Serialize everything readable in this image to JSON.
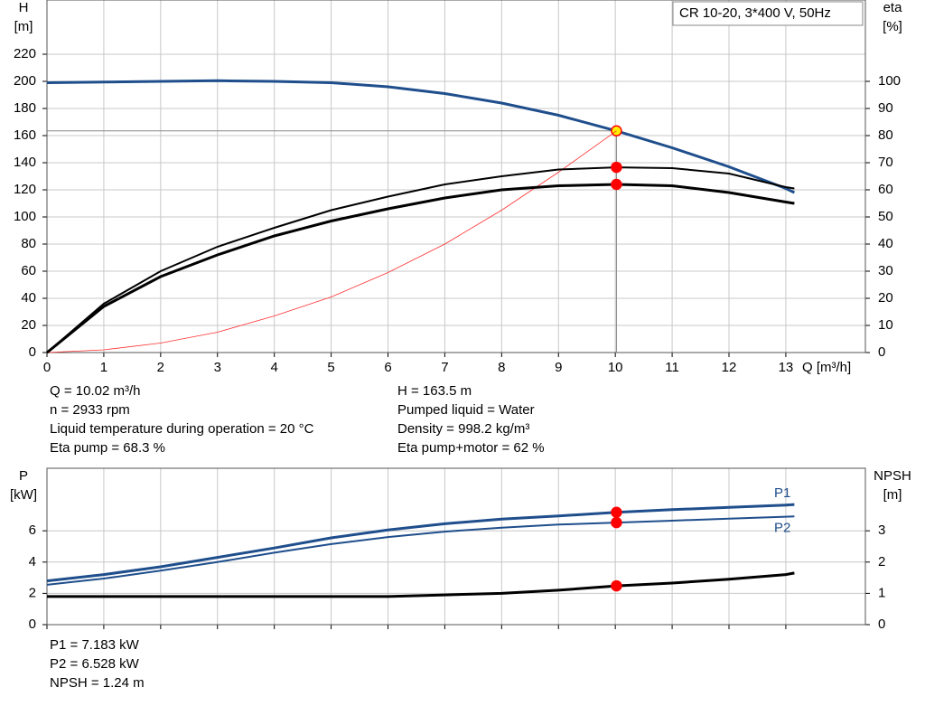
{
  "chart_data": [
    {
      "type": "line",
      "box_title": "CR 10-20, 3*400 V, 50Hz",
      "y_label": "H",
      "y_unit": "[m]",
      "y2_label": "eta",
      "y2_unit": "[%]",
      "x_label": "Q [m³/h]",
      "xlim": [
        0,
        14.4
      ],
      "xticks": [
        0,
        1,
        2,
        3,
        4,
        5,
        6,
        7,
        8,
        9,
        10,
        11,
        12,
        13
      ],
      "ylim": [
        0,
        260
      ],
      "yticks": [
        0,
        20,
        40,
        60,
        80,
        100,
        120,
        140,
        160,
        180,
        200,
        220
      ],
      "y2lim": [
        0,
        130
      ],
      "y2ticks": [
        0,
        10,
        20,
        30,
        40,
        50,
        60,
        70,
        80,
        90,
        100
      ],
      "grid": true,
      "operating_point": {
        "x": 10.02
      },
      "x": [
        0,
        1,
        2,
        3,
        4,
        5,
        6,
        7,
        8,
        9,
        10.02,
        11,
        12,
        13,
        13.15
      ],
      "series": [
        {
          "color": "#1f4e8c",
          "width": 3,
          "marker": "#ffee00",
          "values": [
            199,
            199.5,
            200,
            200.5,
            200,
            199,
            196,
            191,
            184,
            175,
            163.5,
            151,
            137,
            121,
            118
          ]
        },
        {
          "color": "#ff3030",
          "width": 0.8,
          "values": [
            0,
            2,
            7,
            15,
            27,
            41,
            59,
            80,
            105,
            133,
            163.5,
            null,
            null,
            null,
            null
          ]
        },
        {
          "color": "#000000",
          "width": 2,
          "axis": "y2",
          "marker": "#ff0000",
          "values": [
            0,
            18,
            30,
            39,
            46,
            52.5,
            57.5,
            62,
            65,
            67.5,
            68.3,
            68,
            66,
            61,
            60.5
          ]
        },
        {
          "color": "#000000",
          "width": 3,
          "axis": "y2",
          "marker": "#ff0000",
          "values": [
            0,
            17,
            28,
            36,
            43,
            48.5,
            53,
            57,
            60,
            61.5,
            62,
            61.5,
            59,
            55.5,
            55
          ]
        }
      ],
      "info_left": [
        "Q = 10.02 m³/h",
        "n = 2933 rpm",
        "Liquid temperature during operation = 20 °C",
        "Eta pump = 68.3 %"
      ],
      "info_right": [
        "H = 163.5 m",
        "Pumped liquid = Water",
        "Density = 998.2 kg/m³",
        "Eta pump+motor = 62 %"
      ]
    },
    {
      "type": "line",
      "y_label": "P",
      "y_unit": "[kW]",
      "y2_label": "NPSH",
      "y2_unit": "[m]",
      "xlim": [
        0,
        14.4
      ],
      "xticks": [
        0,
        1,
        2,
        3,
        4,
        5,
        6,
        7,
        8,
        9,
        10,
        11,
        12,
        13
      ],
      "ylim": [
        0,
        10
      ],
      "yticks": [
        0,
        2,
        4,
        6
      ],
      "y2lim": [
        0,
        5
      ],
      "y2ticks": [
        0,
        1,
        2,
        3
      ],
      "grid": true,
      "operating_point": {
        "x": 10.02
      },
      "x": [
        0,
        1,
        2,
        3,
        4,
        5,
        6,
        7,
        8,
        9,
        10.02,
        11,
        12,
        13,
        13.15
      ],
      "series": [
        {
          "name": "P1",
          "color": "#1f4e8c",
          "width": 3,
          "marker": "#ff0000",
          "values": [
            2.8,
            3.2,
            3.7,
            4.3,
            4.9,
            5.55,
            6.05,
            6.45,
            6.75,
            6.95,
            7.183,
            7.35,
            7.5,
            7.65,
            7.68
          ]
        },
        {
          "name": "P2",
          "color": "#1f4e8c",
          "width": 2,
          "marker": "#ff0000",
          "values": [
            2.55,
            2.95,
            3.45,
            4.0,
            4.6,
            5.15,
            5.6,
            5.95,
            6.2,
            6.4,
            6.528,
            6.65,
            6.78,
            6.9,
            6.92
          ]
        },
        {
          "color": "#000000",
          "width": 3,
          "axis": "y2",
          "marker": "#ff0000",
          "values": [
            0.9,
            0.9,
            0.9,
            0.9,
            0.9,
            0.9,
            0.9,
            0.95,
            1.0,
            1.1,
            1.24,
            1.33,
            1.45,
            1.6,
            1.65
          ]
        }
      ],
      "info_left": [
        "P1 = 7.183 kW",
        "P2 = 6.528 kW",
        "NPSH = 1.24 m"
      ]
    }
  ]
}
